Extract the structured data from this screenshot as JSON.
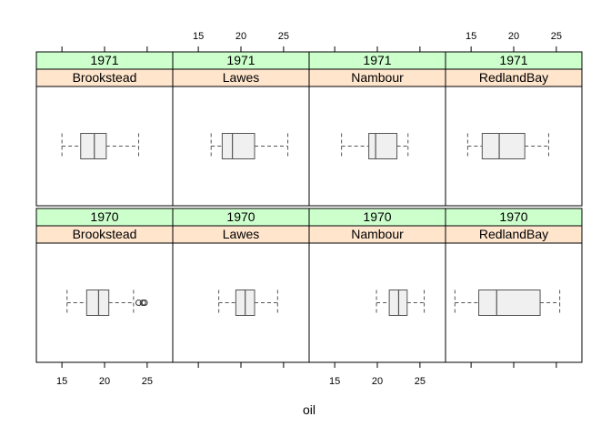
{
  "chart_data": {
    "type": "boxplot",
    "xlabel": "oil",
    "xlim": [
      12,
      28
    ],
    "xticks": [
      15,
      20,
      25
    ],
    "x_tick_labels": [
      "15",
      "20",
      "25"
    ],
    "layout": {
      "columns": 4,
      "rows": 2
    },
    "strip_colors": {
      "year": "#ccffcc",
      "location": "#ffe5cc"
    },
    "box_fill": "#f0f0f0",
    "panels": [
      {
        "year": "1971",
        "location": "Brookstead",
        "row": 0,
        "col": 0,
        "whisker_low": 15.0,
        "q1": 17.2,
        "median": 18.8,
        "q3": 20.2,
        "whisker_high": 24.0,
        "outliers": []
      },
      {
        "year": "1971",
        "location": "Lawes",
        "row": 0,
        "col": 1,
        "whisker_low": 16.5,
        "q1": 17.8,
        "median": 19.0,
        "q3": 21.6,
        "whisker_high": 25.5,
        "outliers": []
      },
      {
        "year": "1971",
        "location": "Nambour",
        "row": 0,
        "col": 2,
        "whisker_low": 15.8,
        "q1": 19.0,
        "median": 19.8,
        "q3": 22.3,
        "whisker_high": 23.6,
        "outliers": []
      },
      {
        "year": "1971",
        "location": "RedlandBay",
        "row": 0,
        "col": 3,
        "whisker_low": 14.6,
        "q1": 16.3,
        "median": 18.3,
        "q3": 21.3,
        "whisker_high": 24.1,
        "outliers": []
      },
      {
        "year": "1970",
        "location": "Brookstead",
        "row": 1,
        "col": 0,
        "whisker_low": 15.6,
        "q1": 17.9,
        "median": 19.3,
        "q3": 20.5,
        "whisker_high": 23.4,
        "outliers": [
          24.0,
          24.5,
          24.7
        ]
      },
      {
        "year": "1970",
        "location": "Lawes",
        "row": 1,
        "col": 1,
        "whisker_low": 17.4,
        "q1": 19.4,
        "median": 20.5,
        "q3": 21.6,
        "whisker_high": 24.3,
        "outliers": []
      },
      {
        "year": "1970",
        "location": "Nambour",
        "row": 1,
        "col": 2,
        "whisker_low": 19.9,
        "q1": 21.4,
        "median": 22.5,
        "q3": 23.5,
        "whisker_high": 25.5,
        "outliers": []
      },
      {
        "year": "1970",
        "location": "RedlandBay",
        "row": 1,
        "col": 3,
        "whisker_low": 13.1,
        "q1": 15.9,
        "median": 18.0,
        "q3": 23.1,
        "whisker_high": 25.4,
        "outliers": []
      }
    ]
  }
}
